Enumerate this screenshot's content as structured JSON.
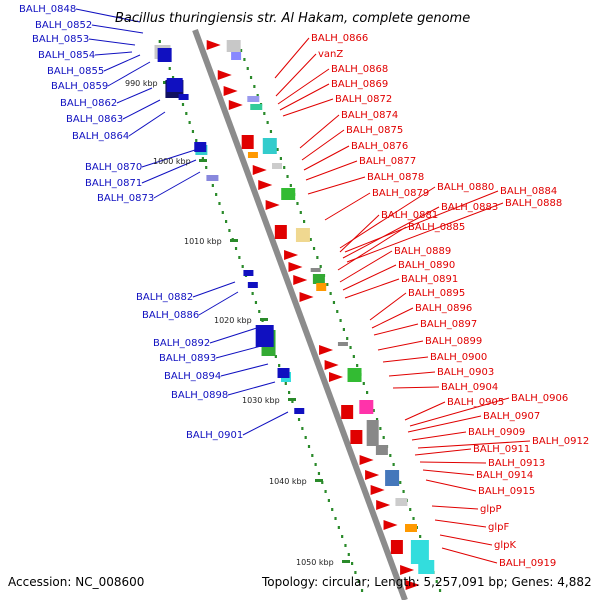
{
  "title": "Bacillus thuringiensis str. Al Hakam, complete genome",
  "accession": "Accession: NC_008600",
  "topology": "Topology: circular; Length: 5,257,091 bp; Genes: 4,882",
  "colors": {
    "forward": "#e00000",
    "reverse": "#1010c0",
    "backbone": "#8c8c8c",
    "scale_dot": "#2a8a2a"
  },
  "scale_labels": [
    "990 kbp",
    "1000 kbp",
    "1010 kbp",
    "1020 kbp",
    "1030 kbp",
    "1040 kbp",
    "1050 kbp"
  ],
  "left_genes": [
    "BALH_0848",
    "BALH_0852",
    "BALH_0853",
    "BALH_0854",
    "BALH_0855",
    "BALH_0859",
    "BALH_0862",
    "BALH_0863",
    "BALH_0864",
    "BALH_0870",
    "BALH_0871",
    "BALH_0873",
    "BALH_0882",
    "BALH_0886",
    "BALH_0892",
    "BALH_0893",
    "BALH_0894",
    "BALH_0898",
    "BALH_0901"
  ],
  "right_genes": [
    "BALH_0866",
    "vanZ",
    "BALH_0868",
    "BALH_0869",
    "BALH_0872",
    "BALH_0874",
    "BALH_0875",
    "BALH_0876",
    "BALH_0877",
    "BALH_0878",
    "BALH_0879",
    "BALH_0880",
    "BALH_0884",
    "BALH_0881",
    "BALH_0883",
    "BALH_0888",
    "BALH_0885",
    "BALH_0889",
    "BALH_0890",
    "BALH_0891",
    "BALH_0895",
    "BALH_0896",
    "BALH_0897",
    "BALH_0899",
    "BALH_0900",
    "BALH_0903",
    "BALH_0904",
    "BALH_0905",
    "BALH_0906",
    "BALH_0907",
    "BALH_0909",
    "BALH_0912",
    "BALH_0911",
    "BALH_0913",
    "BALH_0914",
    "BALH_0915",
    "glpP",
    "glpF",
    "glpK",
    "BALH_0919"
  ]
}
